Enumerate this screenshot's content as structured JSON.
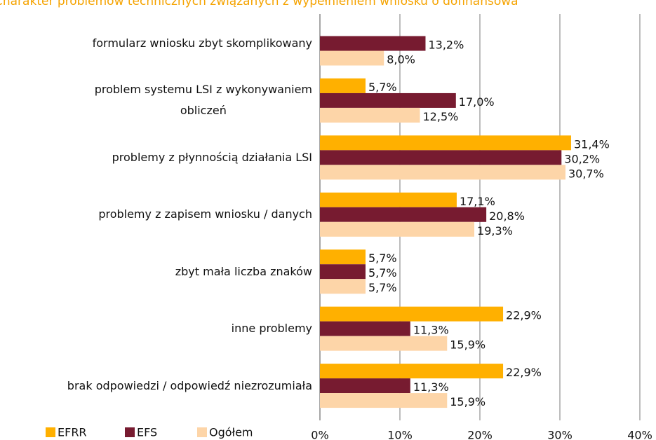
{
  "chart_data": {
    "type": "barh",
    "title": "Charakter problemów technicznych związanych z wypełnieniem wniosku o dofinansowa",
    "categories": [
      "formularz wniosku zbyt skomplikowany",
      "problem systemu LSI z wykonywaniem\nobliczeń",
      "problemy z płynnością działania LSI",
      "problemy z zapisem wniosku / danych",
      "zbyt mała liczba znaków",
      "inne problemy",
      "brak odpowiedzi / odpowiedź niezrozumiała"
    ],
    "series": [
      {
        "name": "EFRR",
        "color": "#ffb000",
        "values": [
          null,
          5.7,
          31.4,
          17.1,
          5.7,
          22.9,
          22.9
        ],
        "value_labels": [
          null,
          "5,7%",
          "31,4%",
          "17,1%",
          "5,7%",
          "22,9%",
          "22,9%"
        ]
      },
      {
        "name": "EFS",
        "color": "#771b30",
        "values": [
          13.2,
          17.0,
          30.2,
          20.8,
          5.7,
          11.3,
          11.3
        ],
        "value_labels": [
          "13,2%",
          "17,0%",
          "30,2%",
          "20,8%",
          "5,7%",
          "11,3%",
          "11,3%"
        ]
      },
      {
        "name": "Ogółem",
        "color": "#fdd5a8",
        "values": [
          8.0,
          12.5,
          30.7,
          19.3,
          5.7,
          15.9,
          15.9
        ],
        "value_labels": [
          "8,0%",
          "12,5%",
          "30,7%",
          "19,3%",
          "5,7%",
          "15,9%",
          "15,9%"
        ]
      }
    ],
    "xlim": [
      0,
      40
    ],
    "xticks": [
      {
        "value": 0,
        "label": "0%"
      },
      {
        "value": 10,
        "label": "10%"
      },
      {
        "value": 20,
        "label": "20%"
      },
      {
        "value": 30,
        "label": "30%"
      },
      {
        "value": 40,
        "label": "40%"
      }
    ],
    "grid": true,
    "legend": "bottom-left"
  }
}
